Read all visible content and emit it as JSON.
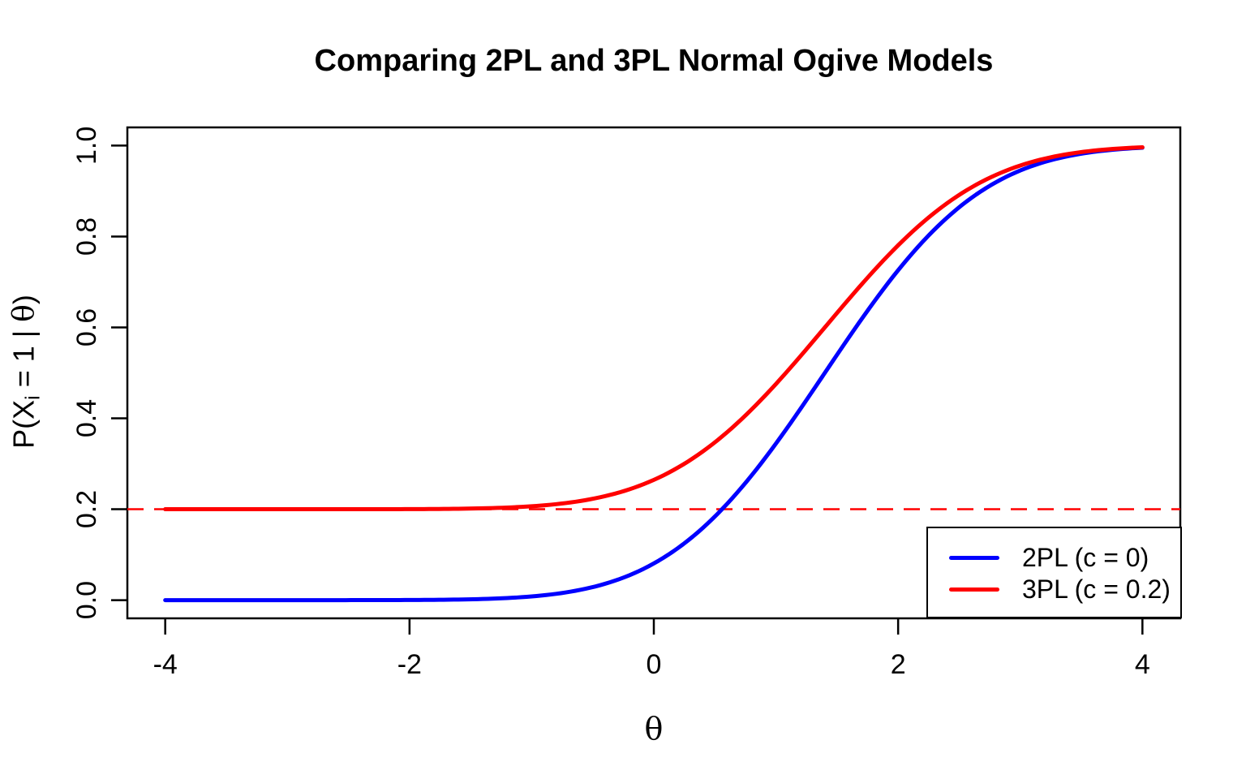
{
  "figure": {
    "background": "#ffffff",
    "text_color": "#000000"
  },
  "chart_data": {
    "type": "line",
    "title": "Comparing 2PL and 3PL Normal Ogive Models",
    "xlabel": "θ",
    "ylabel": "P(Xi = 1 | θ)",
    "ylabel_parts": {
      "p1": "P(X",
      "sub": "i",
      "p2": " = 1 | ",
      "theta": "θ",
      "p3": ")"
    },
    "xlim": [
      -4.31,
      4.31
    ],
    "ylim": [
      -0.04,
      1.04
    ],
    "x_data_range": [
      -4,
      4
    ],
    "grid": false,
    "frame_color": "#000000",
    "x_ticks": {
      "values": [
        -4,
        -2,
        0,
        2,
        4
      ],
      "labels": [
        "-4",
        "-2",
        "0",
        "2",
        "4"
      ]
    },
    "y_ticks": {
      "values": [
        0,
        0.2,
        0.4,
        0.6,
        0.8,
        1.0
      ],
      "labels": [
        "0.0",
        "0.2",
        "0.4",
        "0.6",
        "0.8",
        "1.0"
      ]
    },
    "series": [
      {
        "name": "2PL (c = 0)",
        "color": "#0000ff",
        "line_width": 2,
        "model": "P(theta) = c + (1 - c) * pnorm(a * (theta - b))",
        "params": {
          "a": 1,
          "b": 1.4,
          "c": 0
        },
        "x": [
          -4,
          -3.5,
          -3,
          -2.5,
          -2,
          -1.5,
          -1,
          -0.5,
          0,
          0.5,
          1,
          1.5,
          2,
          2.5,
          3,
          3.5,
          4
        ],
        "y": [
          0.0,
          0.0,
          0.0,
          0.0,
          0.0003,
          0.0019,
          0.0082,
          0.0287,
          0.0808,
          0.1841,
          0.3446,
          0.5398,
          0.7257,
          0.8643,
          0.9452,
          0.9821,
          0.9953
        ]
      },
      {
        "name": "3PL (c = 0.2)",
        "color": "#ff0000",
        "line_width": 2,
        "model": "P(theta) = c + (1 - c) * pnorm(a * (theta - b))",
        "params": {
          "a": 1,
          "b": 1.4,
          "c": 0.2
        },
        "x": [
          -4,
          -3.5,
          -3,
          -2.5,
          -2,
          -1.5,
          -1,
          -0.5,
          0,
          0.5,
          1,
          1.5,
          2,
          2.5,
          3,
          3.5,
          4
        ],
        "y": [
          0.2,
          0.2,
          0.2,
          0.2,
          0.2003,
          0.2015,
          0.2066,
          0.2229,
          0.2646,
          0.3473,
          0.4757,
          0.6318,
          0.7806,
          0.8914,
          0.9562,
          0.9857,
          0.9962
        ]
      }
    ],
    "reference_line": {
      "y": 0.2,
      "color": "#ff0000",
      "style": "dashed"
    },
    "legend": {
      "position": "bottomright",
      "entries": [
        {
          "label": "2PL (c = 0)",
          "color": "#0000ff"
        },
        {
          "label": "3PL (c = 0.2)",
          "color": "#ff0000"
        }
      ]
    }
  }
}
